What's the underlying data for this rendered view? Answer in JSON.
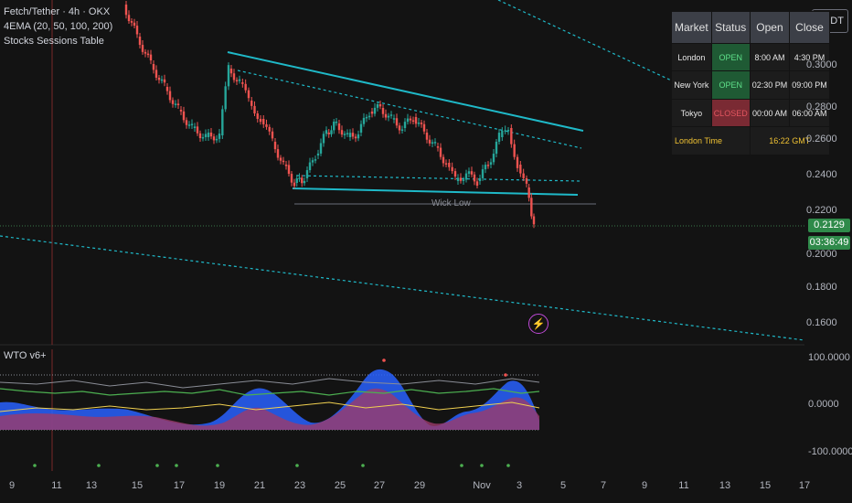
{
  "legend": {
    "symbol": "Fetch/Tether · 4h · OKX",
    "indicator1": "4EMA (20, 50, 100, 200)",
    "indicator2": "Stocks Sessions Table"
  },
  "currency_button": "USDT",
  "price_axis": [
    "0.3000",
    "0.2800",
    "0.2600",
    "0.2400",
    "0.2200",
    "0.1800",
    "0.1600"
  ],
  "price_axis_partial": "0.2000",
  "current_price": "0.2129",
  "countdown": "03:36:49",
  "wick_label": "Wick Low",
  "oscillator": {
    "title": "WTO v6+",
    "levels": [
      "100.0000",
      "0.0000",
      "-100.0000"
    ]
  },
  "time_axis": [
    "9",
    "11",
    "13",
    "15",
    "17",
    "19",
    "21",
    "23",
    "25",
    "27",
    "29",
    "Nov",
    "3",
    "5",
    "7",
    "9",
    "11",
    "13",
    "15",
    "17"
  ],
  "sessions_table": {
    "headers": [
      "Market",
      "Status",
      "Open",
      "Close"
    ],
    "rows": [
      {
        "market": "London",
        "status": "OPEN",
        "open": "8:00 AM",
        "close": "4:30 PM"
      },
      {
        "market": "New York",
        "status": "OPEN",
        "open": "02:30 PM",
        "close": "09:00 PM"
      },
      {
        "market": "Tokyo",
        "status": "CLOSED",
        "open": "00:00 AM",
        "close": "06:00 AM"
      }
    ],
    "london_time_label": "London Time",
    "london_time_value": "16:22 GMT"
  },
  "colors": {
    "bull": "#26a69a",
    "bear": "#ef5350",
    "trendline": "#1fb9c8",
    "accent_green": "#2f8a4a"
  }
}
